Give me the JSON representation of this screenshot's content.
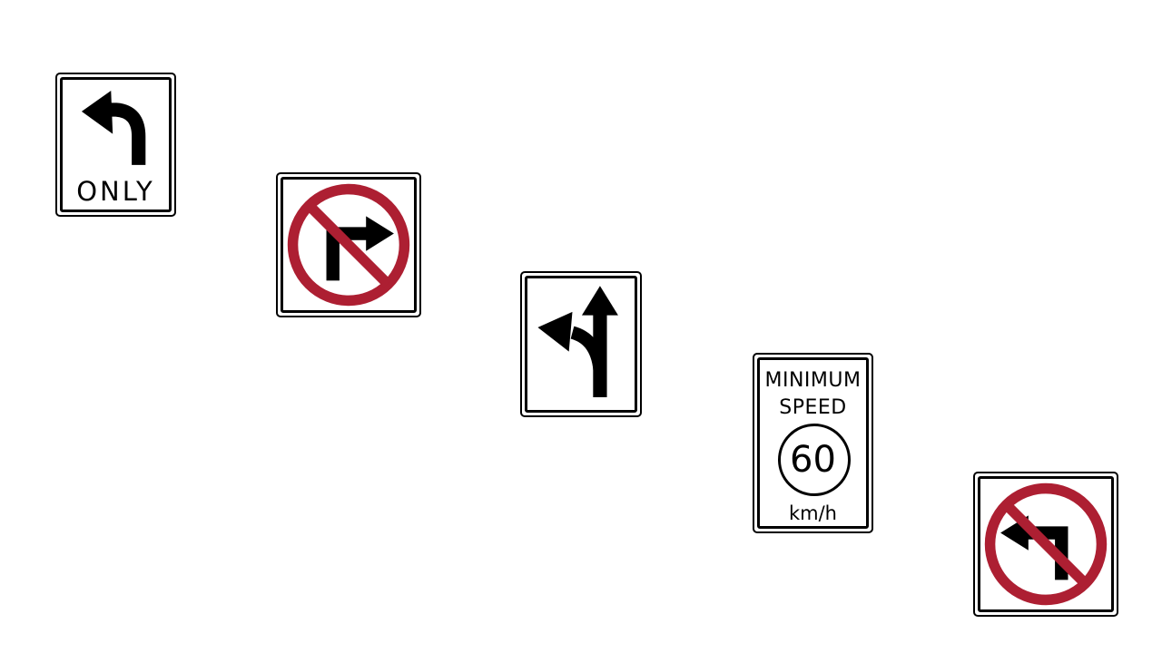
{
  "colors": {
    "sign_background": "#ffffff",
    "sign_border": "#000000",
    "symbol": "#000000",
    "prohibition_red": "#ad1f32"
  },
  "signs": [
    {
      "name": "left-turn-only",
      "icon": "left-turn-arrow-icon",
      "legend": "ONLY"
    },
    {
      "name": "no-right-turn",
      "icon": "no-right-turn-icon"
    },
    {
      "name": "left-turn-or-straight",
      "icon": "left-and-straight-arrow-icon"
    },
    {
      "name": "minimum-speed",
      "line1": "MINIMUM",
      "line2": "SPEED",
      "speed": "60",
      "unit": "km/h"
    },
    {
      "name": "no-left-turn",
      "icon": "no-left-turn-icon"
    }
  ]
}
